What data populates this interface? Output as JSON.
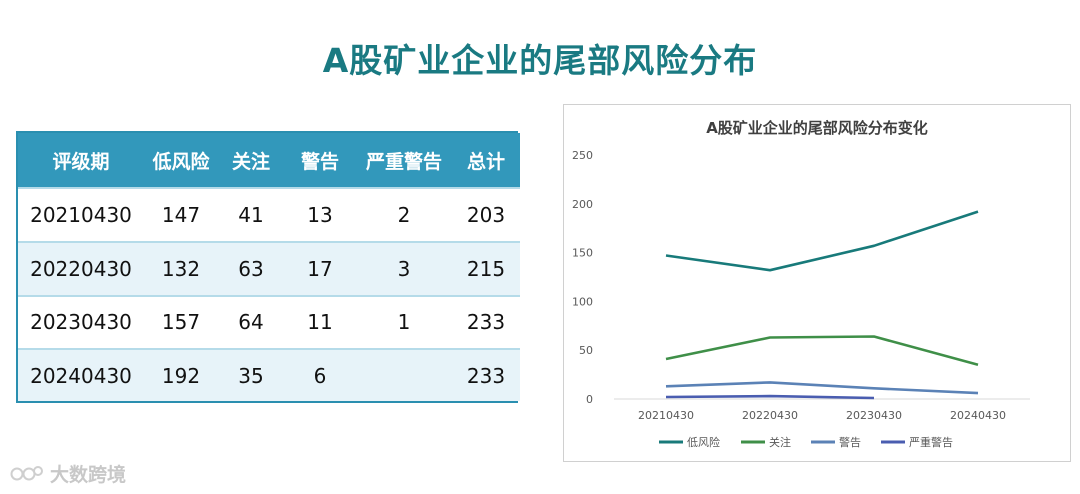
{
  "title": "A股矿业企业的尾部风险分布",
  "table": {
    "headers": [
      "评级期",
      "低风险",
      "关注",
      "警告",
      "严重警告",
      "总计"
    ],
    "rows": [
      [
        "20210430",
        "147",
        "41",
        "13",
        "2",
        "203"
      ],
      [
        "20220430",
        "132",
        "63",
        "17",
        "3",
        "215"
      ],
      [
        "20230430",
        "157",
        "64",
        "11",
        "1",
        "233"
      ],
      [
        "20240430",
        "192",
        "35",
        "6",
        "",
        "233"
      ]
    ]
  },
  "chart_data": {
    "type": "line",
    "title": "A股矿业企业的尾部风险分布变化",
    "categories": [
      "20210430",
      "20220430",
      "20230430",
      "20240430"
    ],
    "series": [
      {
        "name": "低风险",
        "values": [
          147,
          132,
          157,
          192
        ],
        "color": "#187a7a"
      },
      {
        "name": "关注",
        "values": [
          41,
          63,
          64,
          35
        ],
        "color": "#3f8f48"
      },
      {
        "name": "警告",
        "values": [
          13,
          17,
          11,
          6
        ],
        "color": "#5b82b6"
      },
      {
        "name": "严重警告",
        "values": [
          2,
          3,
          1,
          null
        ],
        "color": "#4a5db0"
      }
    ],
    "ylim": [
      0,
      250
    ],
    "yticks": [
      0,
      50,
      100,
      150,
      200,
      250
    ],
    "grid": false,
    "legend": "bottom"
  },
  "watermark": "大数跨境"
}
